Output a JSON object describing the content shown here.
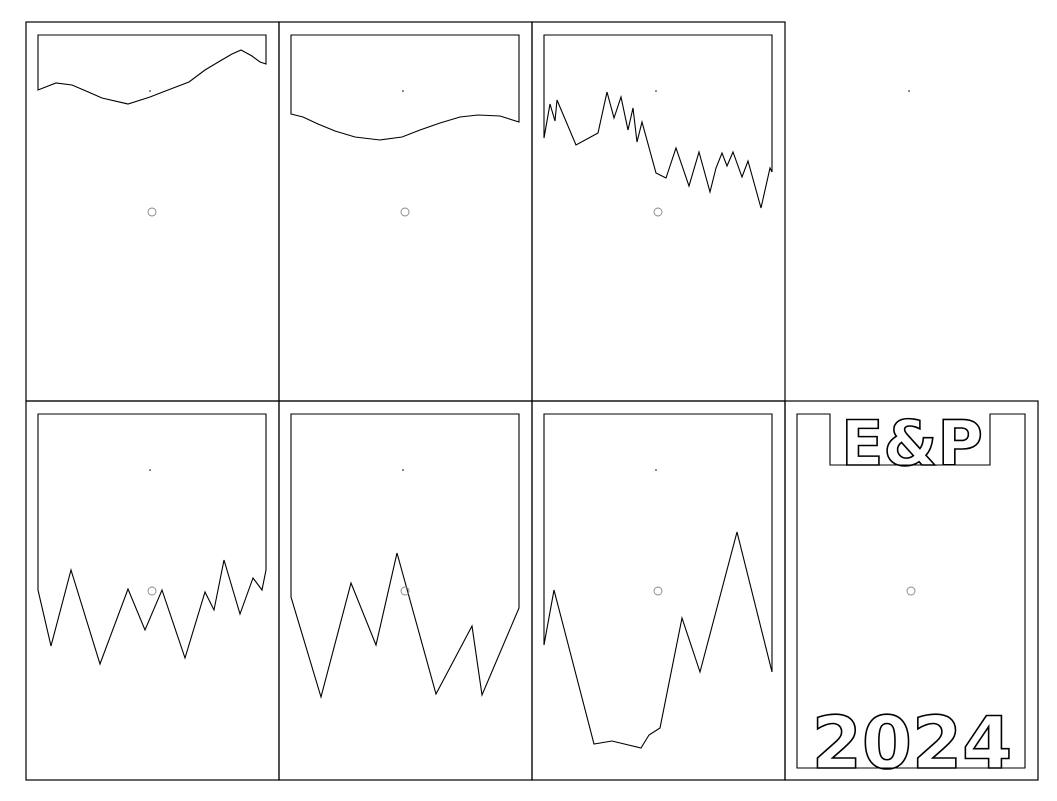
{
  "panels": [
    {
      "id": "panel-1",
      "kind": "top-edge"
    },
    {
      "id": "panel-2",
      "kind": "top-edge"
    },
    {
      "id": "panel-3",
      "kind": "top-edge"
    },
    {
      "id": "panel-4",
      "kind": "empty"
    },
    {
      "id": "panel-5",
      "kind": "zigzag"
    },
    {
      "id": "panel-6",
      "kind": "zigzag"
    },
    {
      "id": "panel-7",
      "kind": "zigzag"
    },
    {
      "id": "panel-8",
      "kind": "text"
    }
  ],
  "label_text": {
    "top": "E&P",
    "bottom": "2024"
  },
  "colors": {
    "line": "#000000",
    "marker": "#888888",
    "background": "#ffffff"
  }
}
